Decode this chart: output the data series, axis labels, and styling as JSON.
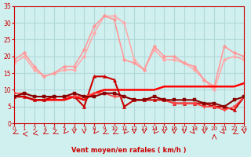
{
  "background_color": "#d0f0f0",
  "grid_color": "#b0d8d8",
  "xlabel": "Vent moyen/en rafales ( km/h )",
  "xlabel_color": "#cc0000",
  "tick_color": "#cc0000",
  "xlim": [
    0,
    23
  ],
  "ylim": [
    0,
    35
  ],
  "yticks": [
    0,
    5,
    10,
    15,
    20,
    25,
    30,
    35
  ],
  "xticks": [
    0,
    1,
    2,
    3,
    4,
    5,
    6,
    7,
    8,
    9,
    10,
    11,
    12,
    13,
    14,
    15,
    16,
    17,
    18,
    19,
    20,
    21,
    22,
    23
  ],
  "lines": [
    {
      "x": [
        0,
        1,
        2,
        3,
        4,
        5,
        6,
        7,
        8,
        9,
        10,
        11,
        12,
        13,
        14,
        15,
        16,
        17,
        18,
        19,
        20,
        21,
        22,
        23
      ],
      "y": [
        18,
        20,
        16,
        14,
        15,
        16,
        16,
        20,
        27,
        32,
        32,
        30,
        19,
        16,
        22,
        19,
        19,
        18,
        16,
        13,
        10,
        19,
        20,
        19
      ],
      "color": "#ffaaaa",
      "linewidth": 1.2,
      "marker": "D",
      "markersize": 2.5,
      "zorder": 2
    },
    {
      "x": [
        0,
        1,
        2,
        3,
        4,
        5,
        6,
        7,
        8,
        9,
        10,
        11,
        12,
        13,
        14,
        15,
        16,
        17,
        18,
        19,
        20,
        21,
        22,
        23
      ],
      "y": [
        19,
        21,
        17,
        14,
        15,
        17,
        17,
        22,
        29,
        32,
        31,
        19,
        18,
        16,
        23,
        20,
        20,
        18,
        17,
        13,
        11,
        23,
        21,
        20
      ],
      "color": "#ff9999",
      "linewidth": 1.2,
      "marker": "D",
      "markersize": 2.5,
      "zorder": 2
    },
    {
      "x": [
        0,
        1,
        2,
        3,
        4,
        5,
        6,
        7,
        8,
        9,
        10,
        11,
        12,
        13,
        14,
        15,
        16,
        17,
        18,
        19,
        20,
        21,
        22,
        23
      ],
      "y": [
        8,
        8,
        7,
        7,
        8,
        8,
        8,
        5,
        14,
        14,
        13,
        5,
        7,
        7,
        7,
        7,
        6,
        6,
        6,
        6,
        5,
        5,
        4,
        8
      ],
      "color": "#cc0000",
      "linewidth": 1.5,
      "marker": "^",
      "markersize": 3,
      "zorder": 4
    },
    {
      "x": [
        0,
        1,
        2,
        3,
        4,
        5,
        6,
        7,
        8,
        9,
        10,
        11,
        12,
        13,
        14,
        15,
        16,
        17,
        18,
        19,
        20,
        21,
        22,
        23
      ],
      "y": [
        8,
        9,
        8,
        8,
        8,
        8,
        9,
        8,
        8,
        9,
        9,
        8,
        7,
        7,
        8,
        7,
        7,
        7,
        7,
        6,
        6,
        5,
        7,
        8
      ],
      "color": "#880000",
      "linewidth": 1.5,
      "marker": "s",
      "markersize": 2.5,
      "zorder": 5
    },
    {
      "x": [
        0,
        1,
        2,
        3,
        4,
        5,
        6,
        7,
        8,
        9,
        10,
        11,
        12,
        13,
        14,
        15,
        16,
        17,
        18,
        19,
        20,
        21,
        22,
        23
      ],
      "y": [
        8,
        8,
        7,
        7,
        7,
        7,
        8,
        7,
        9,
        10,
        10,
        10,
        10,
        10,
        10,
        11,
        11,
        11,
        11,
        11,
        11,
        11,
        11,
        12
      ],
      "color": "#ff0000",
      "linewidth": 1.8,
      "marker": null,
      "markersize": 0,
      "zorder": 3
    },
    {
      "x": [
        0,
        1,
        2,
        3,
        4,
        5,
        6,
        7,
        8,
        9,
        10,
        11,
        12,
        13,
        14,
        15,
        16,
        17,
        18,
        19,
        20,
        21,
        22,
        23
      ],
      "y": [
        9,
        9,
        8,
        8,
        8,
        8,
        8,
        8,
        9,
        9,
        8,
        8,
        7,
        7,
        8,
        7,
        6,
        6,
        6,
        5,
        5,
        4,
        5,
        8
      ],
      "color": "#ff4444",
      "linewidth": 1.2,
      "marker": "v",
      "markersize": 3,
      "zorder": 4
    }
  ],
  "arrows": [
    [
      0,
      225
    ],
    [
      1,
      270
    ],
    [
      2,
      247
    ],
    [
      3,
      225
    ],
    [
      4,
      225
    ],
    [
      5,
      202
    ],
    [
      6,
      180
    ],
    [
      7,
      180
    ],
    [
      8,
      202
    ],
    [
      9,
      225
    ],
    [
      10,
      225
    ],
    [
      11,
      202
    ],
    [
      12,
      180
    ],
    [
      13,
      180
    ],
    [
      14,
      202
    ],
    [
      15,
      180
    ],
    [
      16,
      180
    ],
    [
      17,
      180
    ],
    [
      18,
      157
    ],
    [
      19,
      180
    ],
    [
      20,
      0
    ],
    [
      21,
      157
    ],
    [
      22,
      225
    ],
    [
      23,
      180
    ]
  ]
}
